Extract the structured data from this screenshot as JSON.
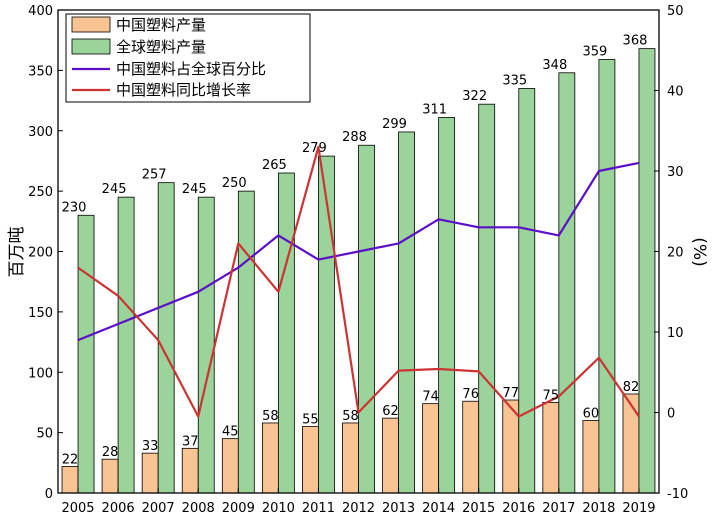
{
  "chart_data": {
    "type": "bar",
    "categories": [
      "2005",
      "2006",
      "2007",
      "2008",
      "2009",
      "2010",
      "2011",
      "2012",
      "2013",
      "2014",
      "2015",
      "2016",
      "2017",
      "2018",
      "2019"
    ],
    "series": [
      {
        "name": "中国塑料产量",
        "type": "bar",
        "axis": "left",
        "color": "#f9c494",
        "values": [
          22,
          28,
          33,
          37,
          45,
          58,
          55,
          58,
          62,
          74,
          76,
          77,
          75,
          60,
          82
        ]
      },
      {
        "name": "全球塑料产量",
        "type": "bar",
        "axis": "left",
        "color": "#9bd49a",
        "values": [
          230,
          245,
          257,
          245,
          250,
          265,
          279,
          288,
          299,
          311,
          322,
          335,
          348,
          359,
          368
        ]
      },
      {
        "name": "中国塑料占全球百分比",
        "type": "line",
        "axis": "right",
        "color": "#5b0fc8",
        "values": [
          9,
          11,
          13,
          15,
          18,
          22,
          19,
          20,
          21,
          24,
          23,
          23,
          22,
          30,
          31
        ]
      },
      {
        "name": "中国塑料同比增长率",
        "type": "line",
        "axis": "right",
        "color": "#cc3333",
        "values": [
          18,
          14.5,
          9,
          -0.5,
          21,
          15,
          33,
          0,
          5.2,
          5.4,
          5.1,
          -0.5,
          2,
          6.8,
          -0.5
        ]
      }
    ],
    "ylabel": "百万吨",
    "ylabel_right": "(%)",
    "ylim": [
      0,
      400
    ],
    "ylim_right": [
      -10,
      50
    ],
    "yticks": [
      0,
      50,
      100,
      150,
      200,
      250,
      300,
      350,
      400
    ],
    "yticks_right": [
      -10,
      0,
      10,
      20,
      30,
      40,
      50
    ],
    "legend_position": "top-left",
    "grid": false
  }
}
